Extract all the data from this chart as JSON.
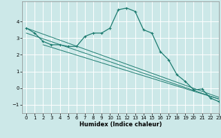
{
  "title": "",
  "xlabel": "Humidex (Indice chaleur)",
  "xlim": [
    -0.5,
    23
  ],
  "ylim": [
    -1.5,
    5.2
  ],
  "yticks": [
    -1,
    0,
    1,
    2,
    3,
    4
  ],
  "xticks": [
    0,
    1,
    2,
    3,
    4,
    5,
    6,
    7,
    8,
    9,
    10,
    11,
    12,
    13,
    14,
    15,
    16,
    17,
    18,
    19,
    20,
    21,
    22,
    23
  ],
  "background_color": "#cce8e8",
  "grid_color": "#ffffff",
  "line_color": "#1a7a6e",
  "curve_x": [
    0,
    1,
    2,
    3,
    4,
    5,
    6,
    7,
    8,
    9,
    10,
    11,
    12,
    13,
    14,
    15,
    16,
    17,
    18,
    19,
    20,
    21,
    22,
    23
  ],
  "curve_y": [
    3.6,
    3.3,
    2.8,
    2.6,
    2.6,
    2.5,
    2.5,
    3.1,
    3.3,
    3.3,
    3.6,
    4.7,
    4.8,
    4.6,
    3.5,
    3.3,
    2.2,
    1.7,
    0.8,
    0.4,
    -0.1,
    -0.05,
    -0.6,
    -0.8
  ],
  "line1_x": [
    0,
    23
  ],
  "line1_y": [
    3.6,
    -0.55
  ],
  "line2_x": [
    0,
    23
  ],
  "line2_y": [
    3.3,
    -0.65
  ],
  "line3_x": [
    2,
    23
  ],
  "line3_y": [
    2.6,
    -0.65
  ]
}
